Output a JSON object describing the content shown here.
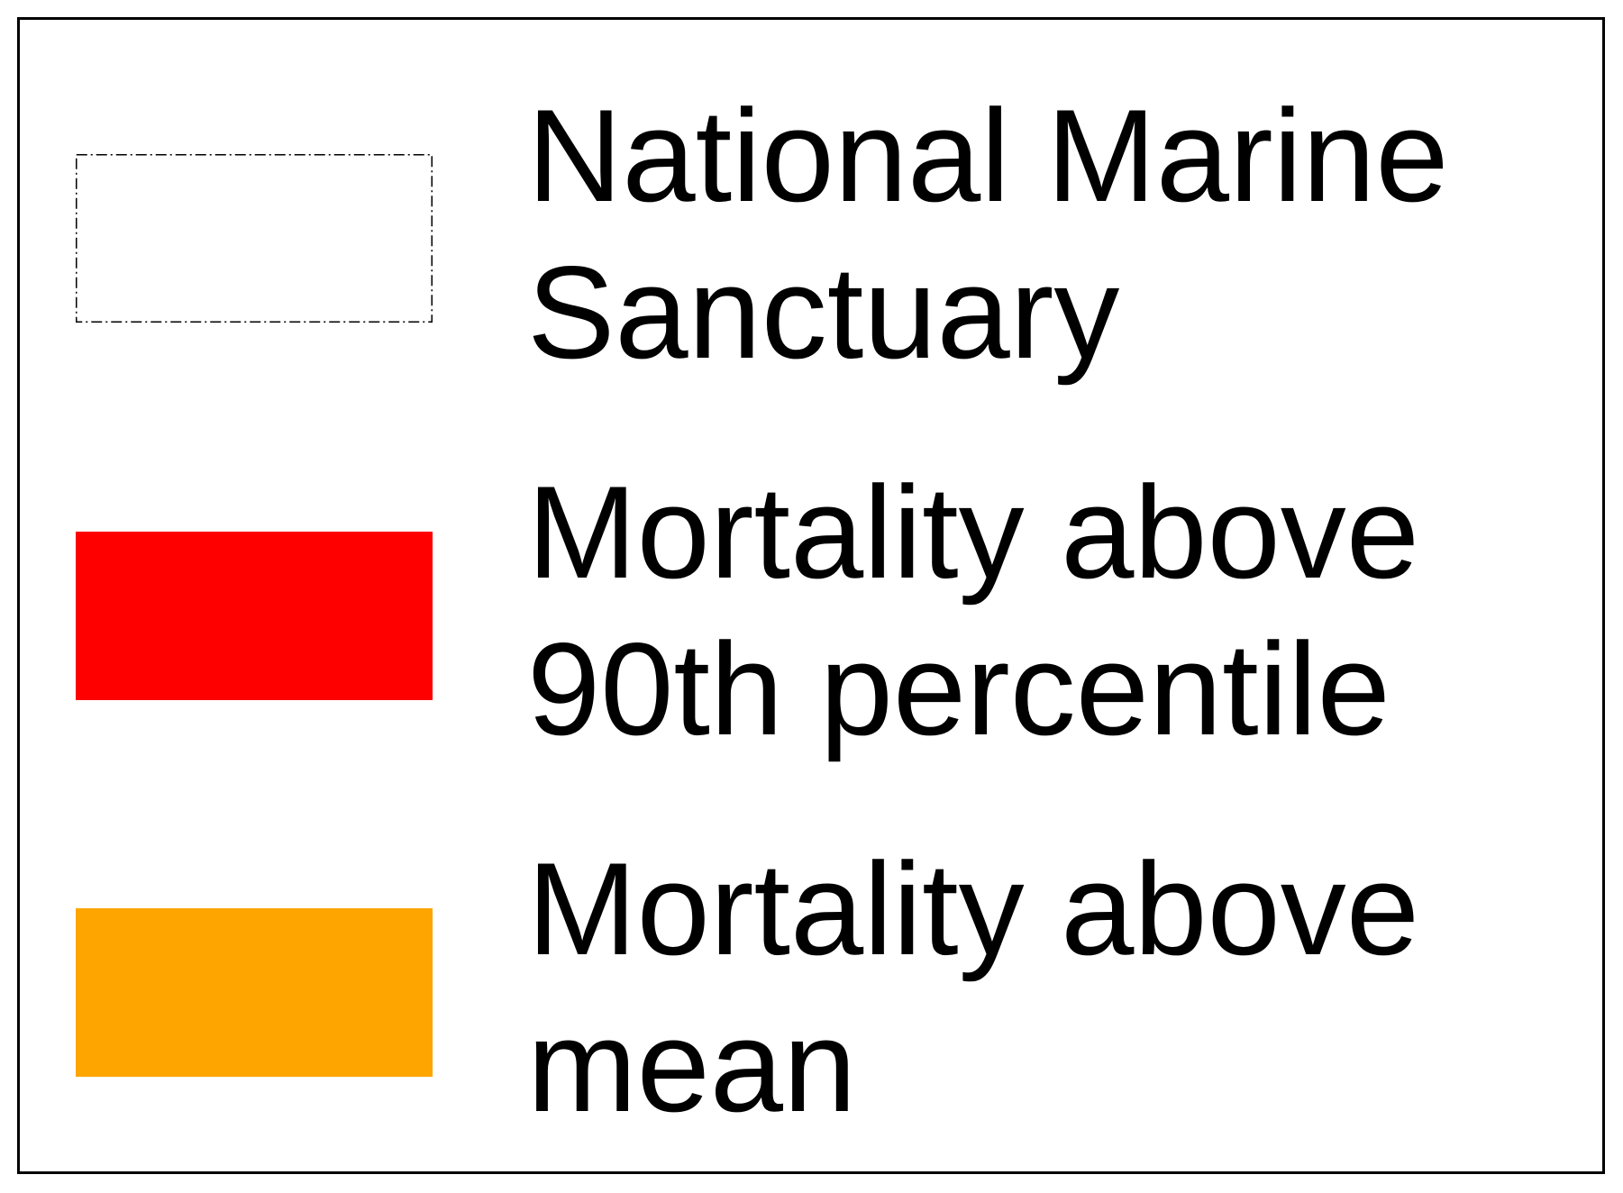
{
  "legend": {
    "items": [
      {
        "label_lines": [
          "National Marine",
          "Sanctuary"
        ],
        "color": "#ffffff",
        "border": "dash-dot",
        "icon": "dash-dot-outline-swatch"
      },
      {
        "label_lines": [
          "Mortality above",
          "90th percentile"
        ],
        "color": "#ff0000",
        "icon": "filled-swatch"
      },
      {
        "label_lines": [
          "Mortality above",
          "mean"
        ],
        "color": "#ffa500",
        "icon": "filled-swatch"
      }
    ]
  }
}
